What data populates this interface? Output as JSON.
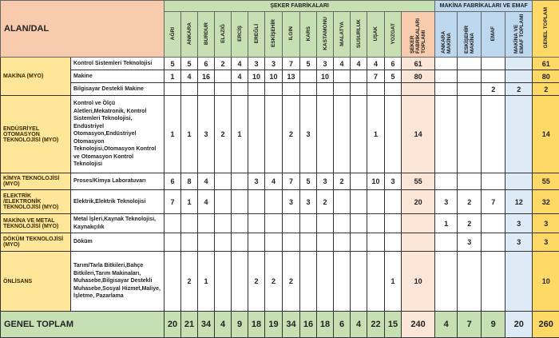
{
  "header": {
    "alan_dal": "ALAN/DAL",
    "seker_group": "ŞEKER FABRİKALARI",
    "makina_group": "MAKİNA FABRİKALARI VE EMAF",
    "columns": [
      "AĞRI",
      "ANKARA",
      "BURDUR",
      "ELAZIĞ",
      "ERCİŞ",
      "EREĞLİ",
      "ESKİŞEHİR",
      "ILGIN",
      "KARS",
      "KASTAMONU",
      "MALATYA",
      "SUSURLUK",
      "UŞAK",
      "YOZGAT",
      "ŞEKER FABRİKALARI TOPLAMI",
      "ANKARA MAKİNA",
      "ESKİŞEHİR MAKİNA",
      "EMAF",
      "MAKİNA VE EMAF TOPLAMI",
      "GENEL TOPLAM"
    ]
  },
  "groups": [
    {
      "alan": "MAKİNA  (MYO)",
      "rows": [
        {
          "dal": "Kontrol Sistemleri Teknolojisi",
          "values": [
            "5",
            "5",
            "6",
            "2",
            "4",
            "3",
            "3",
            "7",
            "5",
            "3",
            "4",
            "4",
            "4",
            "6",
            "61",
            "",
            "",
            "",
            "",
            "61"
          ]
        },
        {
          "dal": "Makine",
          "values": [
            "1",
            "4",
            "16",
            "",
            "4",
            "10",
            "10",
            "13",
            "",
            "10",
            "",
            "",
            "7",
            "5",
            "80",
            "",
            "",
            "",
            "",
            "80"
          ]
        },
        {
          "dal": "Bilgisayar Destekli Makine",
          "values": [
            "",
            "",
            "",
            "",
            "",
            "",
            "",
            "",
            "",
            "",
            "",
            "",
            "",
            "",
            "",
            "",
            "",
            "2",
            "2",
            "2"
          ]
        }
      ]
    },
    {
      "alan": "ENDÜSRİYEL OTOMASYON TEKNOLOJİSİ (MYO)",
      "rows": [
        {
          "dal": "Kontrol ve Ölçü Aletleri,Mekatronik, Kontrol Sistemleri Teknolojisi, Endüstriyel Otomasyon,Endüstriyel Otomasyon Teknolojisi,Otomasyon Kontrol ve Otomasyon Kontrol Teknolojisi",
          "values": [
            "1",
            "1",
            "3",
            "2",
            "1",
            "",
            "",
            "2",
            "3",
            "",
            "",
            "",
            "1",
            "",
            "14",
            "",
            "",
            "",
            "",
            "14"
          ]
        }
      ]
    },
    {
      "alan": "KİMYA TEKNOLOJİSİ (MYO)",
      "rows": [
        {
          "dal": "Proses/Kimya Laboratuvarı",
          "values": [
            "6",
            "8",
            "4",
            "",
            "",
            "3",
            "4",
            "7",
            "5",
            "3",
            "2",
            "",
            "10",
            "3",
            "55",
            "",
            "",
            "",
            "",
            "55"
          ]
        }
      ]
    },
    {
      "alan": "ELEKTRİK /ELEKTRONİK TEKNOLOJİSİ (MYO)",
      "rows": [
        {
          "dal": "Elektrik,Elektrik Teknolojisi",
          "values": [
            "7",
            "1",
            "4",
            "",
            "",
            "",
            "",
            "3",
            "3",
            "2",
            "",
            "",
            "",
            "",
            "20",
            "3",
            "2",
            "7",
            "12",
            "32"
          ]
        }
      ]
    },
    {
      "alan": "MAKİNA VE METAL TEKNOLOJİSİ (MYO)",
      "rows": [
        {
          "dal": "Metal İşleri,Kaynak Teknolojisi, Kaynakçılık",
          "values": [
            "",
            "",
            "",
            "",
            "",
            "",
            "",
            "",
            "",
            "",
            "",
            "",
            "",
            "",
            "",
            "1",
            "2",
            "",
            "3",
            "3"
          ]
        }
      ]
    },
    {
      "alan": "DÖKÜM TEKNOLOJİSİ (MYO)",
      "rows": [
        {
          "dal": "Döküm",
          "values": [
            "",
            "",
            "",
            "",
            "",
            "",
            "",
            "",
            "",
            "",
            "",
            "",
            "",
            "",
            "",
            "",
            "3",
            "",
            "3",
            "3"
          ]
        }
      ]
    },
    {
      "alan": "ÖNLİSANS",
      "rows": [
        {
          "dal": "Tarım/Tarla Bitkileri,Bahçe Bitkileri,Tarım Makinaları, Muhasebe,Bilgisayar Destekli Muhasebe,Sosyal Hizmet,Maliye, İşletme, Pazarlama",
          "values": [
            "",
            "2",
            "1",
            "",
            "",
            "2",
            "2",
            "2",
            "",
            "",
            "",
            "",
            "",
            "1",
            "10",
            "",
            "",
            "",
            "",
            "10"
          ]
        }
      ]
    }
  ],
  "total": {
    "label": "GENEL TOPLAM",
    "values": [
      "20",
      "21",
      "34",
      "4",
      "9",
      "18",
      "19",
      "34",
      "16",
      "18",
      "6",
      "4",
      "22",
      "15",
      "240",
      "4",
      "7",
      "9",
      "20",
      "260"
    ]
  },
  "colors": {
    "alan_header": "#f8cbad",
    "alan": "#ffe699",
    "seker": "#c6e0b4",
    "makina": "#bdd7ee",
    "seker_total": "#fbe5d6",
    "makina_total": "#ddebf7",
    "grand_total": "#ffd966"
  }
}
